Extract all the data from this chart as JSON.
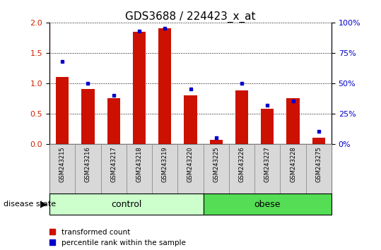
{
  "title": "GDS3688 / 224423_x_at",
  "samples": [
    "GSM243215",
    "GSM243216",
    "GSM243217",
    "GSM243218",
    "GSM243219",
    "GSM243220",
    "GSM243225",
    "GSM243226",
    "GSM243227",
    "GSM243228",
    "GSM243275"
  ],
  "transformed_count": [
    1.1,
    0.9,
    0.75,
    1.85,
    1.9,
    0.8,
    0.07,
    0.88,
    0.58,
    0.75,
    0.1
  ],
  "percentile_rank": [
    68,
    50,
    40,
    93,
    95,
    45,
    5,
    50,
    32,
    35,
    10
  ],
  "bar_color": "#cc1100",
  "dot_color": "#0000cc",
  "bar_width": 0.5,
  "ylim_left": [
    0,
    2
  ],
  "ylim_right": [
    0,
    100
  ],
  "yticks_left": [
    0,
    0.5,
    1.0,
    1.5,
    2.0
  ],
  "yticks_right": [
    0,
    25,
    50,
    75,
    100
  ],
  "ytick_labels_right": [
    "0%",
    "25%",
    "50%",
    "75%",
    "100%"
  ],
  "n_control": 6,
  "control_color": "#ccffcc",
  "obese_color": "#55dd55",
  "label_bar": "transformed count",
  "label_dot": "percentile rank within the sample",
  "disease_label": "disease state",
  "control_label": "control",
  "obese_label": "obese",
  "grid_color": "#000000",
  "title_fontsize": 11,
  "axis_color_left": "#cc2200",
  "axis_color_right": "#0000cc",
  "sample_bg_color": "#d8d8d8",
  "sample_border_color": "#888888"
}
